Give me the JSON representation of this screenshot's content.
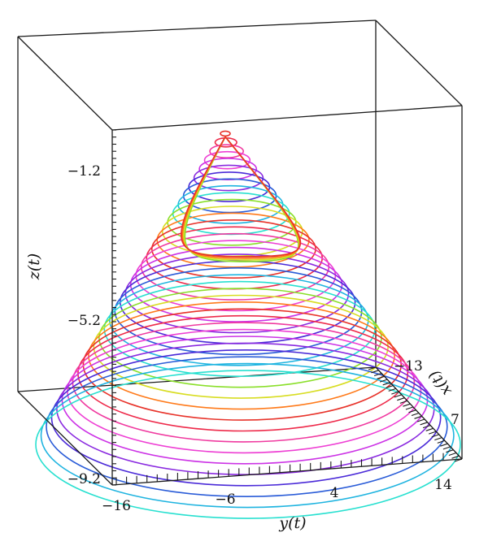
{
  "chart_data": {
    "type": "line",
    "plot_kind": "3d-parametric-spiral",
    "axes": {
      "x": {
        "label": "x(t)",
        "tick_labels": [
          "−13",
          "7"
        ],
        "range": [
          -13,
          17
        ]
      },
      "y": {
        "label": "y(t)",
        "tick_labels": [
          "−16",
          "−6",
          "4",
          "14"
        ],
        "range": [
          -16,
          16
        ]
      },
      "z": {
        "label": "z(t)",
        "tick_labels": [
          "−1.2",
          "−5.2",
          "−9.2"
        ],
        "range": [
          -9.2,
          0.8
        ]
      }
    },
    "series": [
      {
        "curve": "spiral",
        "loops": 36,
        "z_top": 0.7,
        "z_bottom": -7.6,
        "apex": [
          3,
          -6
        ],
        "radius_top": 0.3,
        "radius_bottom": 13.5
      }
    ],
    "color_cycle": [
      "#28e0d0",
      "#1fb4e0",
      "#2a5cd8",
      "#4a2ad8",
      "#8a2ae0",
      "#cc33e6",
      "#ee3fd4",
      "#f03aa0",
      "#ee2a4a",
      "#e8332a",
      "#ff7a1a",
      "#d8dd22",
      "#8adf2a"
    ],
    "grid": false,
    "box": true
  }
}
